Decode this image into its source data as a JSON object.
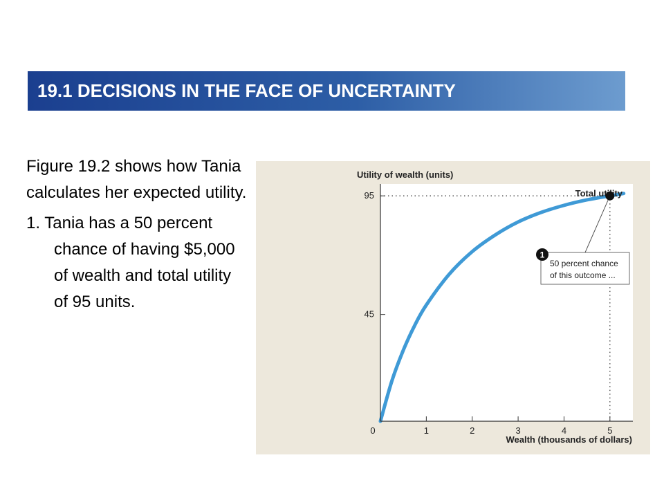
{
  "header": {
    "title": "19.1 DECISIONS IN THE FACE OF UNCERTAINTY"
  },
  "text": {
    "paragraph": "Figure 19.2 shows how Tania calculates her expected utility.",
    "item_number": "1.",
    "item_text": "Tania has a 50 percent chance of having $5,000 of wealth and total utility of 95 units."
  },
  "chart_data": {
    "type": "line",
    "ylabel": "Utility of wealth (units)",
    "xlabel": "Wealth (thousands of dollars)",
    "x_ticks": [
      "0",
      "1",
      "2",
      "3",
      "4",
      "5"
    ],
    "y_ticks": [
      "45",
      "95"
    ],
    "xlim": [
      0,
      5.5
    ],
    "ylim": [
      0,
      100
    ],
    "series": [
      {
        "name": "Total utility",
        "x": [
          0,
          0.25,
          0.5,
          0.75,
          1,
          1.5,
          2,
          2.5,
          3,
          3.5,
          4,
          4.5,
          5,
          5.3
        ],
        "y": [
          0,
          17,
          30,
          40.5,
          49,
          62,
          71.5,
          78.5,
          84,
          88,
          91,
          93.3,
          95,
          96
        ]
      }
    ],
    "highlight_point": {
      "x": 5,
      "y": 95
    },
    "annotations": {
      "curve_label": "Total utility",
      "callout_number": "1",
      "callout_line1": "50 percent chance",
      "callout_line2": "of this outcome ..."
    },
    "colors": {
      "curve": "#3f9ad6",
      "panel": "#ede8dc",
      "plot_bg": "#ffffff"
    }
  }
}
